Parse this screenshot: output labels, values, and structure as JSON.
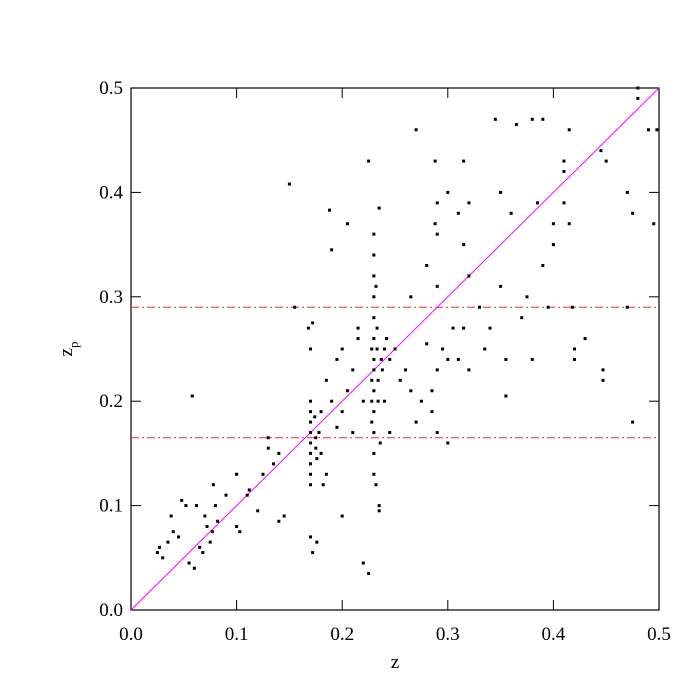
{
  "chart_data": {
    "type": "scatter",
    "xlabel": "z",
    "ylabel": "z",
    "ylabel_sub": "p",
    "xlim": [
      0,
      0.5
    ],
    "ylim": [
      0,
      0.5
    ],
    "xticks": [
      {
        "value": 0,
        "label": "0.0"
      },
      0.1,
      0.2,
      0.3,
      0.4,
      0.5
    ],
    "yticks": [
      {
        "value": 0,
        "label": "0.0"
      },
      0.1,
      0.2,
      0.3,
      0.4,
      0.5
    ],
    "color": "#000000",
    "identity_line": {
      "color": "#ff00ff"
    },
    "hlines": {
      "values": [
        0.165,
        0.29
      ],
      "color": "#e0303a",
      "style": "dashdot"
    },
    "x": [
      0.025,
      0.027,
      0.03,
      0.035,
      0.038,
      0.04,
      0.045,
      0.048,
      0.052,
      0.055,
      0.058,
      0.06,
      0.062,
      0.065,
      0.068,
      0.07,
      0.072,
      0.075,
      0.077,
      0.078,
      0.08,
      0.082,
      0.09,
      0.1,
      0.1,
      0.103,
      0.11,
      0.112,
      0.12,
      0.125,
      0.13,
      0.13,
      0.135,
      0.14,
      0.14,
      0.145,
      0.15,
      0.155,
      0.168,
      0.17,
      0.17,
      0.17,
      0.17,
      0.17,
      0.17,
      0.17,
      0.17,
      0.17,
      0.17,
      0.17,
      0.172,
      0.172,
      0.174,
      0.175,
      0.175,
      0.176,
      0.176,
      0.178,
      0.18,
      0.18,
      0.182,
      0.185,
      0.185,
      0.188,
      0.19,
      0.19,
      0.195,
      0.195,
      0.2,
      0.2,
      0.2,
      0.205,
      0.205,
      0.21,
      0.21,
      0.215,
      0.215,
      0.22,
      0.22,
      0.225,
      0.225,
      0.228,
      0.228,
      0.228,
      0.228,
      0.23,
      0.23,
      0.23,
      0.23,
      0.23,
      0.23,
      0.23,
      0.23,
      0.23,
      0.23,
      0.23,
      0.23,
      0.23,
      0.232,
      0.232,
      0.233,
      0.233,
      0.234,
      0.234,
      0.235,
      0.235,
      0.235,
      0.236,
      0.237,
      0.238,
      0.24,
      0.24,
      0.242,
      0.245,
      0.245,
      0.25,
      0.255,
      0.26,
      0.265,
      0.265,
      0.27,
      0.27,
      0.275,
      0.28,
      0.28,
      0.285,
      0.285,
      0.288,
      0.288,
      0.29,
      0.29,
      0.29,
      0.29,
      0.29,
      0.295,
      0.3,
      0.3,
      0.3,
      0.305,
      0.31,
      0.31,
      0.315,
      0.315,
      0.315,
      0.32,
      0.32,
      0.32,
      0.33,
      0.335,
      0.34,
      0.345,
      0.35,
      0.35,
      0.355,
      0.355,
      0.36,
      0.365,
      0.37,
      0.375,
      0.38,
      0.38,
      0.385,
      0.39,
      0.39,
      0.395,
      0.4,
      0.4,
      0.41,
      0.41,
      0.41,
      0.415,
      0.415,
      0.418,
      0.42,
      0.42,
      0.43,
      0.445,
      0.447,
      0.447,
      0.45,
      0.47,
      0.47,
      0.475,
      0.475,
      0.48,
      0.48,
      0.49,
      0.495,
      0.498
    ],
    "values": [
      0.055,
      0.06,
      0.05,
      0.065,
      0.09,
      0.075,
      0.07,
      0.105,
      0.1,
      0.045,
      0.205,
      0.04,
      0.1,
      0.06,
      0.055,
      0.09,
      0.08,
      0.065,
      0.075,
      0.12,
      0.1,
      0.085,
      0.11,
      0.13,
      0.08,
      0.075,
      0.11,
      0.115,
      0.095,
      0.13,
      0.165,
      0.155,
      0.14,
      0.085,
      0.15,
      0.09,
      0.408,
      0.29,
      0.27,
      0.25,
      0.2,
      0.19,
      0.18,
      0.17,
      0.16,
      0.15,
      0.14,
      0.13,
      0.12,
      0.07,
      0.055,
      0.275,
      0.185,
      0.165,
      0.155,
      0.145,
      0.065,
      0.17,
      0.15,
      0.19,
      0.12,
      0.13,
      0.22,
      0.383,
      0.2,
      0.345,
      0.24,
      0.175,
      0.19,
      0.25,
      0.09,
      0.21,
      0.37,
      0.23,
      0.17,
      0.27,
      0.26,
      0.045,
      0.2,
      0.43,
      0.035,
      0.25,
      0.22,
      0.2,
      0.18,
      0.36,
      0.34,
      0.32,
      0.3,
      0.28,
      0.26,
      0.24,
      0.23,
      0.21,
      0.19,
      0.17,
      0.15,
      0.13,
      0.12,
      0.31,
      0.27,
      0.25,
      0.22,
      0.2,
      0.385,
      0.1,
      0.095,
      0.16,
      0.24,
      0.23,
      0.25,
      0.2,
      0.26,
      0.24,
      0.17,
      0.25,
      0.22,
      0.23,
      0.21,
      0.3,
      0.46,
      0.18,
      0.2,
      0.255,
      0.33,
      0.19,
      0.21,
      0.43,
      0.37,
      0.39,
      0.36,
      0.31,
      0.23,
      0.17,
      0.25,
      0.4,
      0.24,
      0.16,
      0.27,
      0.24,
      0.38,
      0.43,
      0.35,
      0.27,
      0.39,
      0.32,
      0.23,
      0.29,
      0.25,
      0.27,
      0.47,
      0.31,
      0.4,
      0.24,
      0.205,
      0.38,
      0.465,
      0.28,
      0.3,
      0.47,
      0.24,
      0.39,
      0.47,
      0.33,
      0.29,
      0.35,
      0.37,
      0.43,
      0.42,
      0.39,
      0.46,
      0.37,
      0.29,
      0.25,
      0.24,
      0.26,
      0.44,
      0.23,
      0.22,
      0.43,
      0.29,
      0.4,
      0.18,
      0.38,
      0.5,
      0.49,
      0.46,
      0.37,
      0.46
    ]
  }
}
